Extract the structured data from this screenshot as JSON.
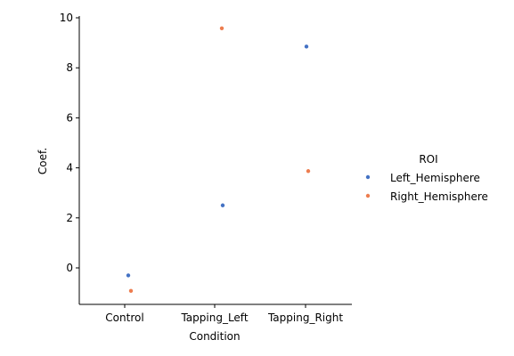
{
  "chart_data": {
    "type": "scatter",
    "title": "",
    "xlabel": "Condition",
    "ylabel": "Coef.",
    "categories": [
      "Control",
      "Tapping_Left",
      "Tapping_Right"
    ],
    "yticks": [
      0,
      2,
      4,
      6,
      8,
      10
    ],
    "ylim": [
      -1.5,
      10.1
    ],
    "grid": false,
    "legend": {
      "title": "ROI",
      "placement": "right"
    },
    "series": [
      {
        "name": "Left_Hemisphere",
        "color": "#4472c4",
        "points": [
          {
            "category": "Control",
            "value": -0.3
          },
          {
            "category": "Tapping_Left",
            "value": 2.5
          },
          {
            "category": "Tapping_Right",
            "value": 8.85
          }
        ]
      },
      {
        "name": "Right_Hemisphere",
        "color": "#ed7d4f",
        "points": [
          {
            "category": "Control",
            "value": -0.92
          },
          {
            "category": "Tapping_Left",
            "value": 9.58
          },
          {
            "category": "Tapping_Right",
            "value": 3.87
          }
        ]
      }
    ]
  }
}
